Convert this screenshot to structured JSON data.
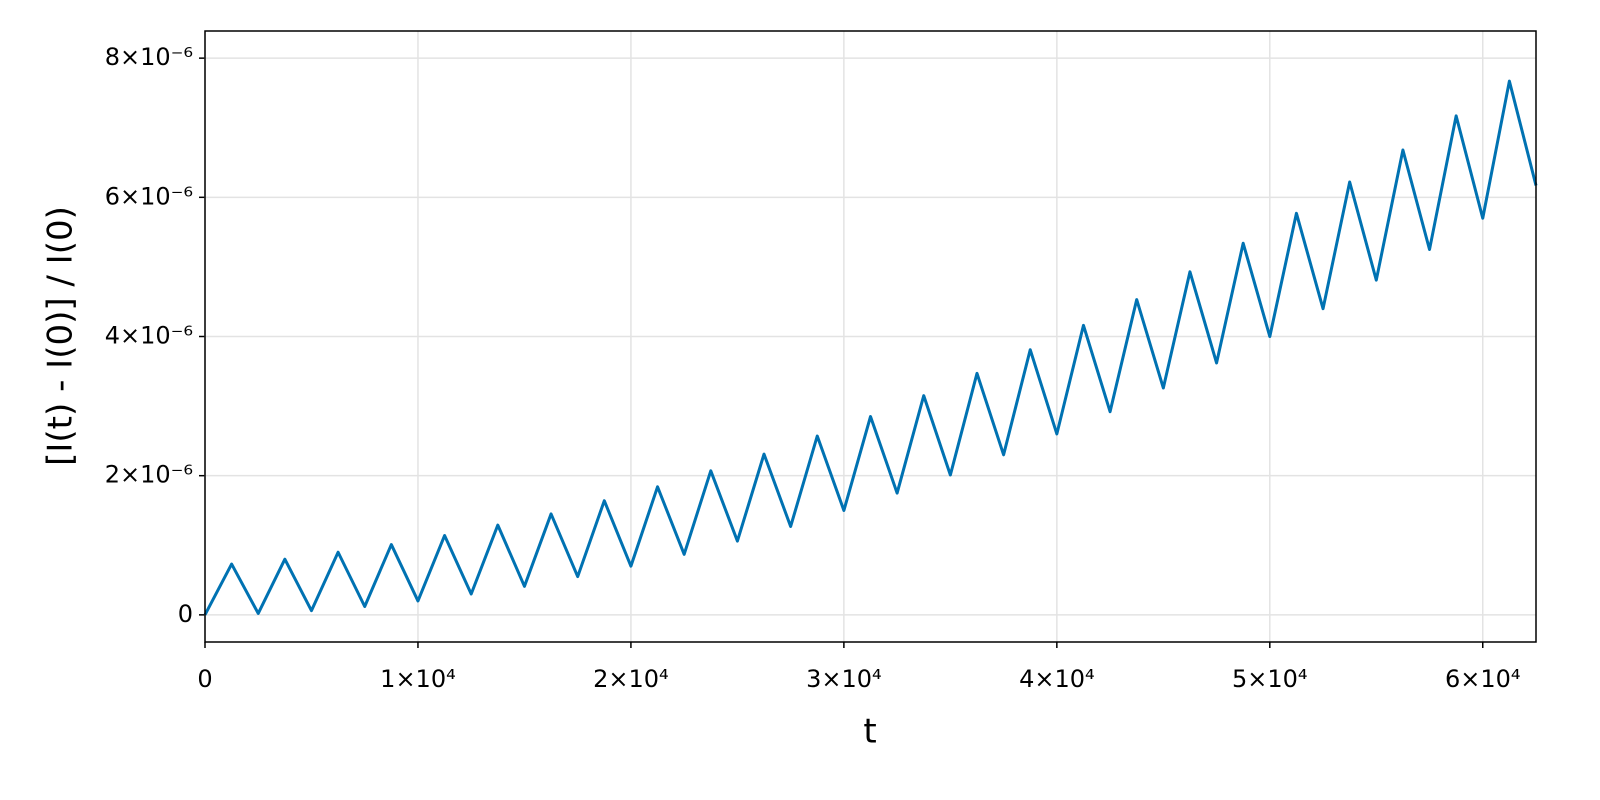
{
  "chart_data": {
    "type": "line",
    "xlabel": "t",
    "ylabel": "[I(t) - I(0)] / I(0)",
    "x": [
      0,
      1250,
      2500,
      3750,
      5000,
      6250,
      7500,
      8750,
      10000,
      11250,
      12500,
      13750,
      15000,
      16250,
      17500,
      18750,
      20000,
      21250,
      22500,
      23750,
      25000,
      26250,
      27500,
      28750,
      30000,
      31250,
      32500,
      33750,
      35000,
      36250,
      37500,
      38750,
      40000,
      41250,
      42500,
      43750,
      45000,
      46250,
      47500,
      48750,
      50000,
      51250,
      52500,
      53750,
      55000,
      56250,
      57500,
      58750,
      60000,
      61250,
      62500
    ],
    "values": [
      0,
      7.3e-07,
      2e-08,
      8e-07,
      6e-08,
      9e-07,
      1.2e-07,
      1.01e-06,
      2e-07,
      1.14e-06,
      3e-07,
      1.29e-06,
      4.1e-07,
      1.45e-06,
      5.5e-07,
      1.64e-06,
      7e-07,
      1.84e-06,
      8.7e-07,
      2.07e-06,
      1.06e-06,
      2.31e-06,
      1.27e-06,
      2.57e-06,
      1.5e-06,
      2.85e-06,
      1.75e-06,
      3.15e-06,
      2.01e-06,
      3.47e-06,
      2.3e-06,
      3.81e-06,
      2.6e-06,
      4.16e-06,
      2.92e-06,
      4.53e-06,
      3.26e-06,
      4.93e-06,
      3.62e-06,
      5.34e-06,
      4e-06,
      5.77e-06,
      4.4e-06,
      6.22e-06,
      4.81e-06,
      6.68e-06,
      5.25e-06,
      7.17e-06,
      5.7e-06,
      7.67e-06,
      6.17e-06
    ],
    "color": "#0072b2",
    "xlim": [
      0,
      62500
    ],
    "ylim": [
      -3.9e-07,
      8.39e-06
    ],
    "xticks": [
      0,
      {
        "value": 10000,
        "label": "1×10⁴"
      },
      {
        "value": 20000,
        "label": "2×10⁴"
      },
      {
        "value": 30000,
        "label": "3×10⁴"
      },
      {
        "value": 40000,
        "label": "4×10⁴"
      },
      {
        "value": 50000,
        "label": "5×10⁴"
      },
      {
        "value": 60000,
        "label": "6×10⁴"
      }
    ],
    "yticks": [
      0,
      {
        "value": 2e-06,
        "label": "2×10⁻⁶"
      },
      {
        "value": 4e-06,
        "label": "4×10⁻⁶"
      },
      {
        "value": 6e-06,
        "label": "6×10⁻⁶"
      },
      {
        "value": 8e-06,
        "label": "8×10⁻⁶"
      }
    ],
    "grid": true
  }
}
